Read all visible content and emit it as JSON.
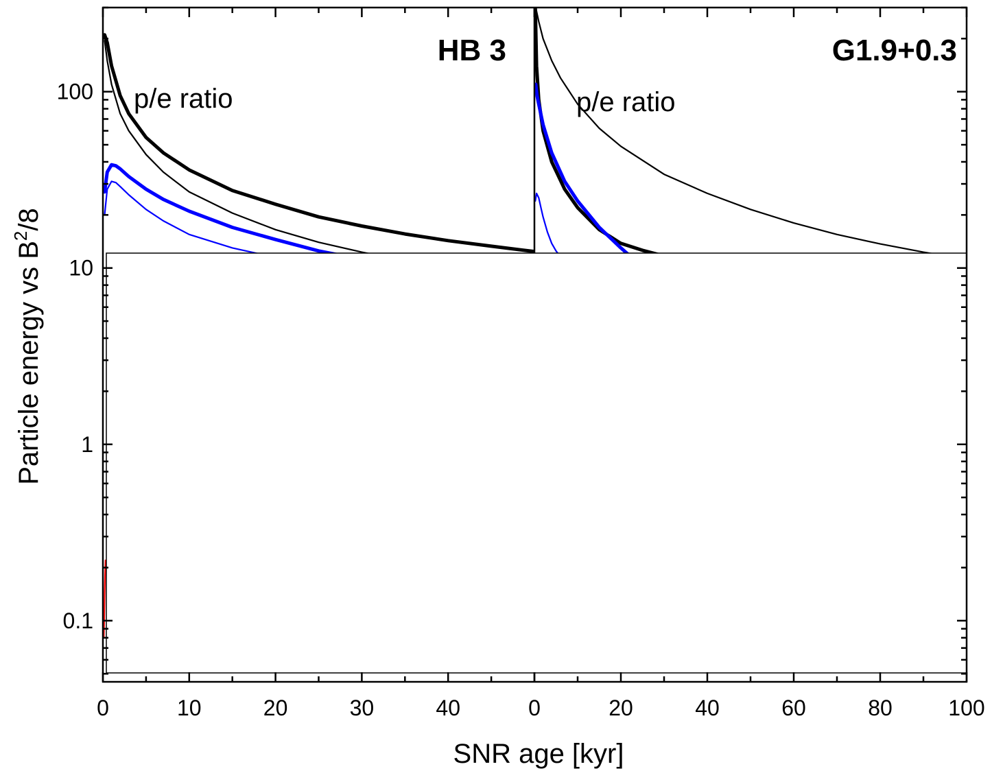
{
  "chart_data": [
    {
      "type": "line",
      "title": "HB 3",
      "annotation": "p/e ratio",
      "xlim": [
        0,
        50
      ],
      "ylim": [
        0.045,
        300
      ],
      "yscale": "log",
      "xticks": [
        0,
        10,
        20,
        30,
        40
      ],
      "series": [
        {
          "color": "#000000",
          "width": "thick",
          "x": [
            0.2,
            0.5,
            1,
            2,
            3,
            5,
            7,
            10,
            15,
            20,
            25,
            30,
            35,
            40,
            45,
            50
          ],
          "y": [
            210,
            190,
            140,
            95,
            75,
            55,
            45,
            36,
            27.5,
            23,
            19.5,
            17.3,
            15.6,
            14.3,
            13.3,
            12.4
          ]
        },
        {
          "color": "#000000",
          "width": "thin",
          "x": [
            0.2,
            0.5,
            1,
            2,
            3,
            5,
            7,
            10,
            15,
            20,
            25,
            30,
            35
          ],
          "y": [
            195,
            150,
            110,
            75,
            60,
            44,
            35,
            27,
            20.5,
            16.5,
            14,
            12.3,
            11
          ]
        },
        {
          "color": "#0000ff",
          "width": "thick",
          "x": [
            0.2,
            0.5,
            1,
            1.5,
            2,
            3,
            5,
            7,
            10,
            15,
            20,
            25,
            30
          ],
          "y": [
            27,
            35,
            38.5,
            38,
            36.5,
            33,
            28,
            24.5,
            21,
            17,
            14.5,
            12.5,
            11.2
          ]
        },
        {
          "color": "#0000ff",
          "width": "thin",
          "x": [
            0.2,
            0.5,
            1,
            1.5,
            2,
            3,
            5,
            7,
            10,
            15,
            21
          ],
          "y": [
            20,
            28,
            31,
            30.5,
            29,
            26,
            21.5,
            18.5,
            15.5,
            13,
            11.2
          ]
        },
        {
          "color": "#ff0000",
          "width": "thin",
          "x": [
            0.1,
            0.15,
            0.2,
            0.25,
            0.3
          ],
          "y": [
            0.08,
            0.1,
            0.14,
            0.18,
            0.22
          ]
        }
      ]
    },
    {
      "type": "line",
      "title": "G1.9+0.3",
      "annotation": "p/e ratio",
      "xlim": [
        0,
        100
      ],
      "ylim": [
        0.045,
        300
      ],
      "yscale": "log",
      "xticks": [
        0,
        20,
        40,
        60,
        80,
        100
      ],
      "series": [
        {
          "color": "#000000",
          "width": "thin",
          "x": [
            0.3,
            1,
            2,
            4,
            6,
            10,
            15,
            20,
            30,
            40,
            50,
            60,
            70,
            80,
            90,
            100
          ],
          "y": [
            300,
            250,
            200,
            150,
            120,
            85,
            62,
            49,
            34,
            26.5,
            21.5,
            18,
            15.5,
            13.7,
            12.3,
            11.2
          ]
        },
        {
          "color": "#000000",
          "width": "thick",
          "x": [
            0.2,
            0.5,
            1,
            2,
            4,
            7,
            10,
            15,
            20,
            25,
            30,
            35
          ],
          "y": [
            300,
            140,
            90,
            60,
            40,
            28,
            22,
            16.5,
            13.8,
            12.6,
            11.7,
            11.1
          ]
        },
        {
          "color": "#0000ff",
          "width": "thick",
          "x": [
            0.3,
            0.6,
            1,
            2,
            4,
            7,
            10,
            15,
            20,
            23
          ],
          "y": [
            110,
            95,
            85,
            65,
            45,
            31,
            24,
            17,
            13,
            11.2
          ]
        },
        {
          "color": "#0000ff",
          "width": "thin",
          "x": [
            0.2,
            0.5,
            1,
            1.5,
            2,
            3,
            4,
            5,
            6,
            7
          ],
          "y": [
            24,
            26.5,
            25,
            22,
            19.5,
            16,
            13.8,
            12.5,
            11.6,
            11.1
          ]
        }
      ]
    }
  ],
  "yticks": [
    {
      "value": 100,
      "label": "100"
    },
    {
      "value": 10,
      "label": "10"
    },
    {
      "value": 1,
      "label": "1"
    },
    {
      "value": 0.1,
      "label": "0.1"
    }
  ],
  "ylabel": "Particle energy vs B",
  "ylabel_sup": "2",
  "ylabel_suffix": "/8",
  "xlabel": "SNR age [kyr]"
}
